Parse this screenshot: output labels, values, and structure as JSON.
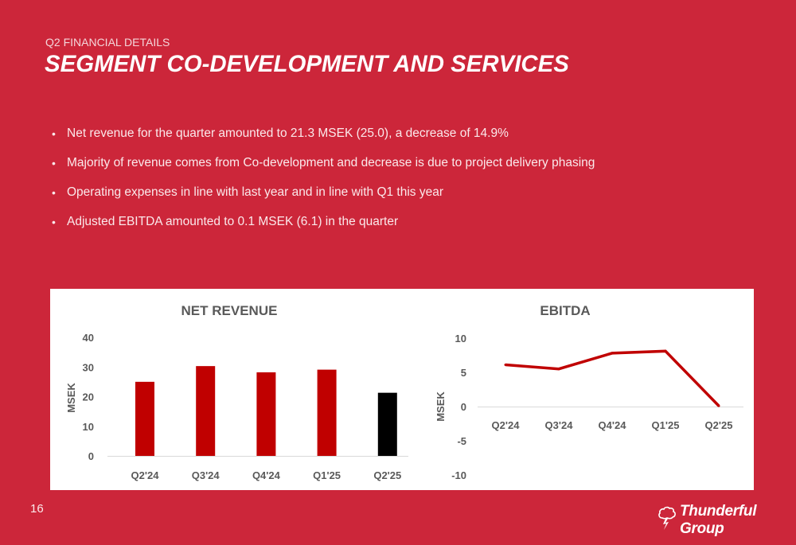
{
  "header": {
    "kicker": "Q2 FINANCIAL DETAILS",
    "title": "SEGMENT CO-DEVELOPMENT AND SERVICES"
  },
  "bullets": [
    "Net revenue for the quarter amounted to 21.3 MSEK (25.0), a decrease of 14.9%",
    "Majority of revenue comes from Co-development and decrease is due to project delivery phasing",
    "Operating expenses in line with last year and in line with Q1 this year",
    "Adjusted EBITDA amounted to 0.1 MSEK (6.1) in the quarter"
  ],
  "footer": {
    "page_number": "16",
    "logo_text": "Thunderful Group",
    "logo_icon": "cloud-lightning-icon"
  },
  "colors": {
    "background": "#cc263a",
    "bar_primary": "#c00000",
    "bar_highlight": "#000000",
    "line": "#c00000"
  },
  "chart_data": [
    {
      "type": "bar",
      "title": "NET REVENUE",
      "xlabel": "",
      "ylabel": "MSEK",
      "categories": [
        "Q2'24",
        "Q3'24",
        "Q4'24",
        "Q1'25",
        "Q2'25"
      ],
      "values": [
        25.0,
        30.3,
        28.2,
        29.1,
        21.3
      ],
      "highlight_index": 4,
      "ylim": [
        0,
        40
      ],
      "yticks": [
        0,
        10,
        20,
        30,
        40
      ],
      "grid": false,
      "legend": "none"
    },
    {
      "type": "line",
      "title": "EBITDA",
      "xlabel": "",
      "ylabel": "MSEK",
      "categories": [
        "Q2'24",
        "Q3'24",
        "Q4'24",
        "Q1'25",
        "Q2'25"
      ],
      "values": [
        6.1,
        5.5,
        7.8,
        8.1,
        0.1
      ],
      "ylim": [
        -10,
        10
      ],
      "yticks": [
        -10,
        -5,
        0,
        5,
        10
      ],
      "grid": false,
      "legend": "none"
    }
  ]
}
